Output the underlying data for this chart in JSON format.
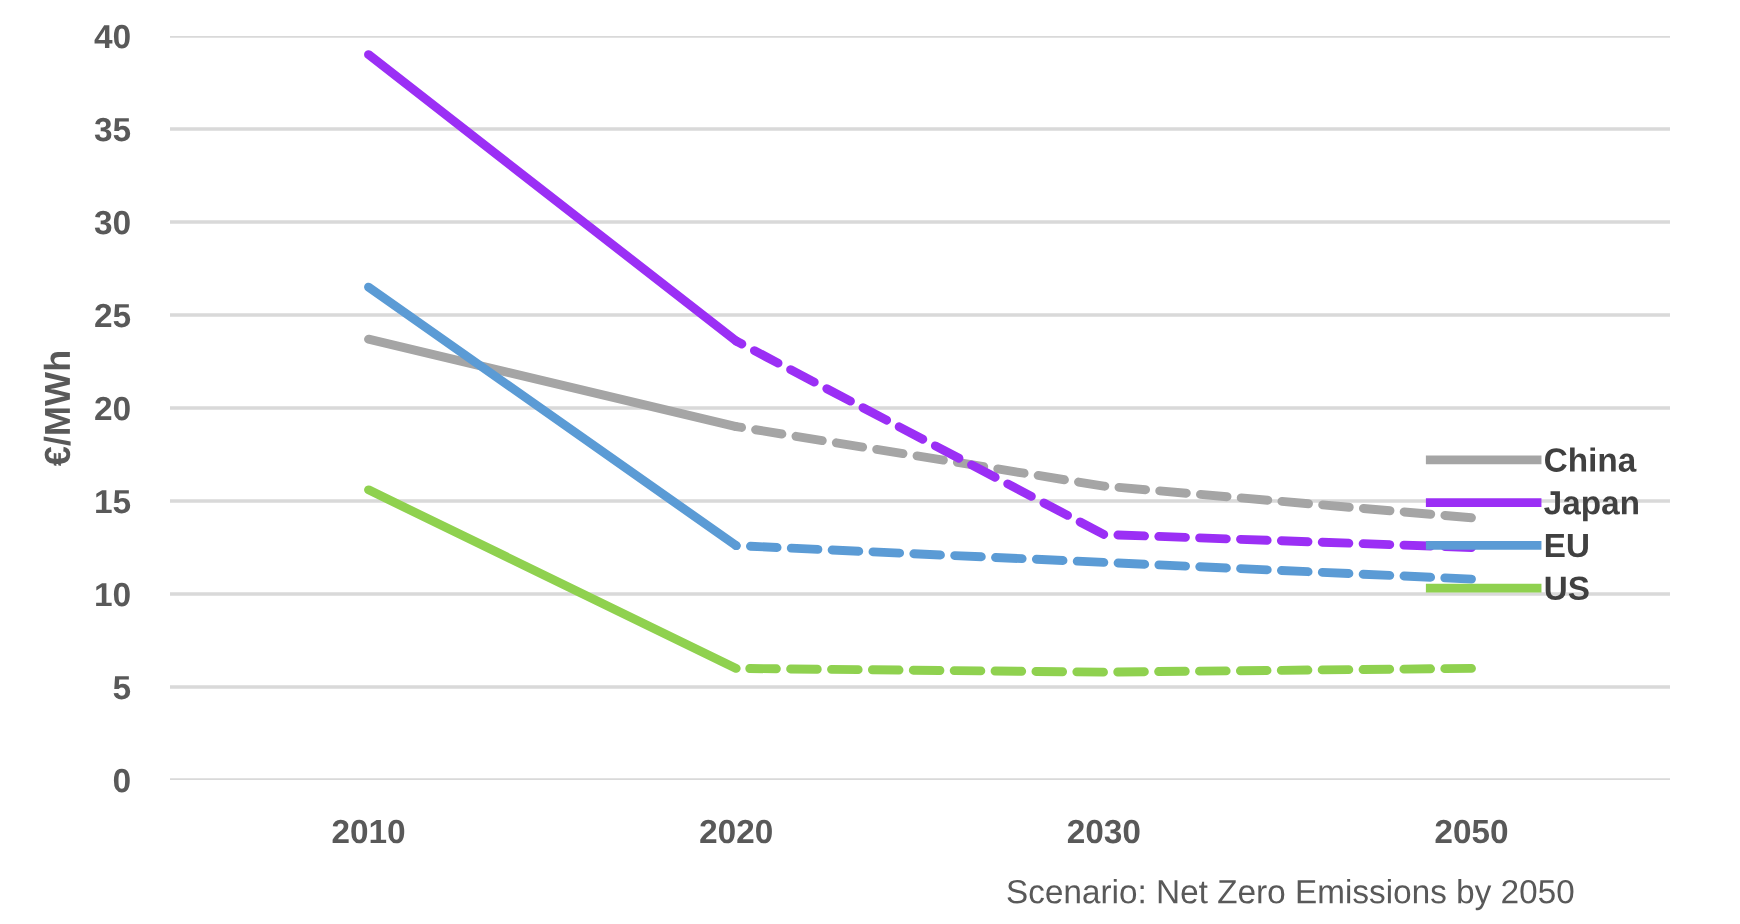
{
  "chart_data": {
    "type": "line",
    "ylabel": "€/MWh",
    "categories": [
      "2010",
      "2020",
      "2030",
      "2050"
    ],
    "series": [
      {
        "name": "China",
        "color": "#a5a5a5",
        "values": [
          23.7,
          19.0,
          null,
          null
        ],
        "line_style": "solid"
      },
      {
        "name": "Japan",
        "color": "#9b2ff5",
        "values": [
          39.0,
          23.6,
          null,
          null
        ],
        "line_style": "solid"
      },
      {
        "name": "EU",
        "color": "#5b9bd5",
        "values": [
          26.5,
          12.6,
          null,
          null
        ],
        "line_style": "solid"
      },
      {
        "name": "US",
        "color": "#8fd14f",
        "values": [
          15.6,
          6.0,
          null,
          null
        ],
        "line_style": "solid"
      },
      {
        "color": "#a5a5a5",
        "values": [
          null,
          19.0,
          15.8,
          14.1
        ],
        "line_style": "dashed"
      },
      {
        "color": "#9b2ff5",
        "values": [
          null,
          23.6,
          13.2,
          12.5
        ],
        "line_style": "dashed"
      },
      {
        "color": "#5b9bd5",
        "values": [
          null,
          12.6,
          11.7,
          10.8
        ],
        "line_style": "dashed"
      },
      {
        "color": "#8fd14f",
        "values": [
          null,
          6.0,
          5.8,
          6.0
        ],
        "line_style": "dashed"
      }
    ],
    "ylim": [
      0,
      40
    ],
    "yticks": [
      0,
      5,
      10,
      15,
      20,
      25,
      30,
      35,
      40
    ],
    "grid": "y",
    "legend": "right",
    "marker": "none",
    "annotations": [
      "Scenario: Net Zero Emissions by 2050"
    ]
  }
}
